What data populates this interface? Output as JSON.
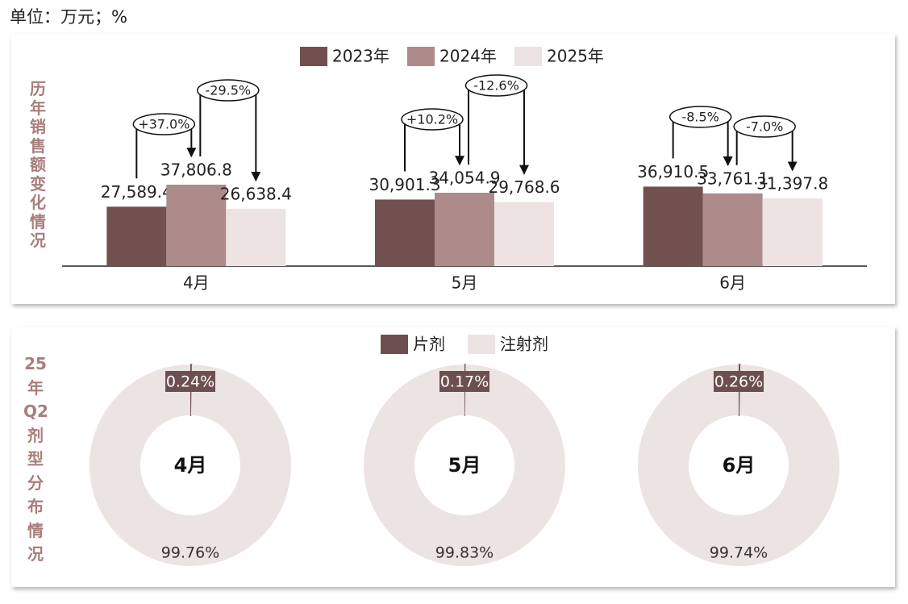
{
  "unit_note": "单位：万元；%",
  "chart_data": [
    {
      "type": "bar",
      "title": "历年销售额变化情况",
      "categories": [
        "4月",
        "5月",
        "6月"
      ],
      "series": [
        {
          "name": "2023年",
          "color": "#71504f",
          "values": [
            27589.4,
            30901.3,
            36910.5
          ],
          "value_labels": [
            "27,589.4",
            "30,901.3",
            "36,910.5"
          ]
        },
        {
          "name": "2024年",
          "color": "#ad8b8a",
          "values": [
            37806.8,
            34054.9,
            33761.1
          ],
          "value_labels": [
            "37,806.8",
            "34,054.9",
            "33,761.1"
          ]
        },
        {
          "name": "2025年",
          "color": "#ece3e2",
          "values": [
            26638.4,
            29768.6,
            31397.8
          ],
          "value_labels": [
            "26,638.4",
            "29,768.6",
            "31,397.8"
          ]
        }
      ],
      "change_labels": [
        [
          "+37.0%",
          "-29.5%"
        ],
        [
          "+10.2%",
          "-12.6%"
        ],
        [
          "-8.5%",
          "-7.0%"
        ]
      ]
    },
    {
      "type": "donut",
      "title": "25年Q2剂型分布情况",
      "categories": [
        "4月",
        "5月",
        "6月"
      ],
      "series": [
        {
          "name": "片剂",
          "color": "#6e4f50",
          "values": [
            0.24,
            0.17,
            0.26
          ],
          "value_labels": [
            "0.24%",
            "0.17%",
            "0.26%"
          ]
        },
        {
          "name": "注射剂",
          "color": "#ece4e3",
          "values": [
            99.76,
            99.83,
            99.74
          ],
          "value_labels": [
            "99.76%",
            "99.83%",
            "99.74%"
          ]
        }
      ]
    }
  ]
}
